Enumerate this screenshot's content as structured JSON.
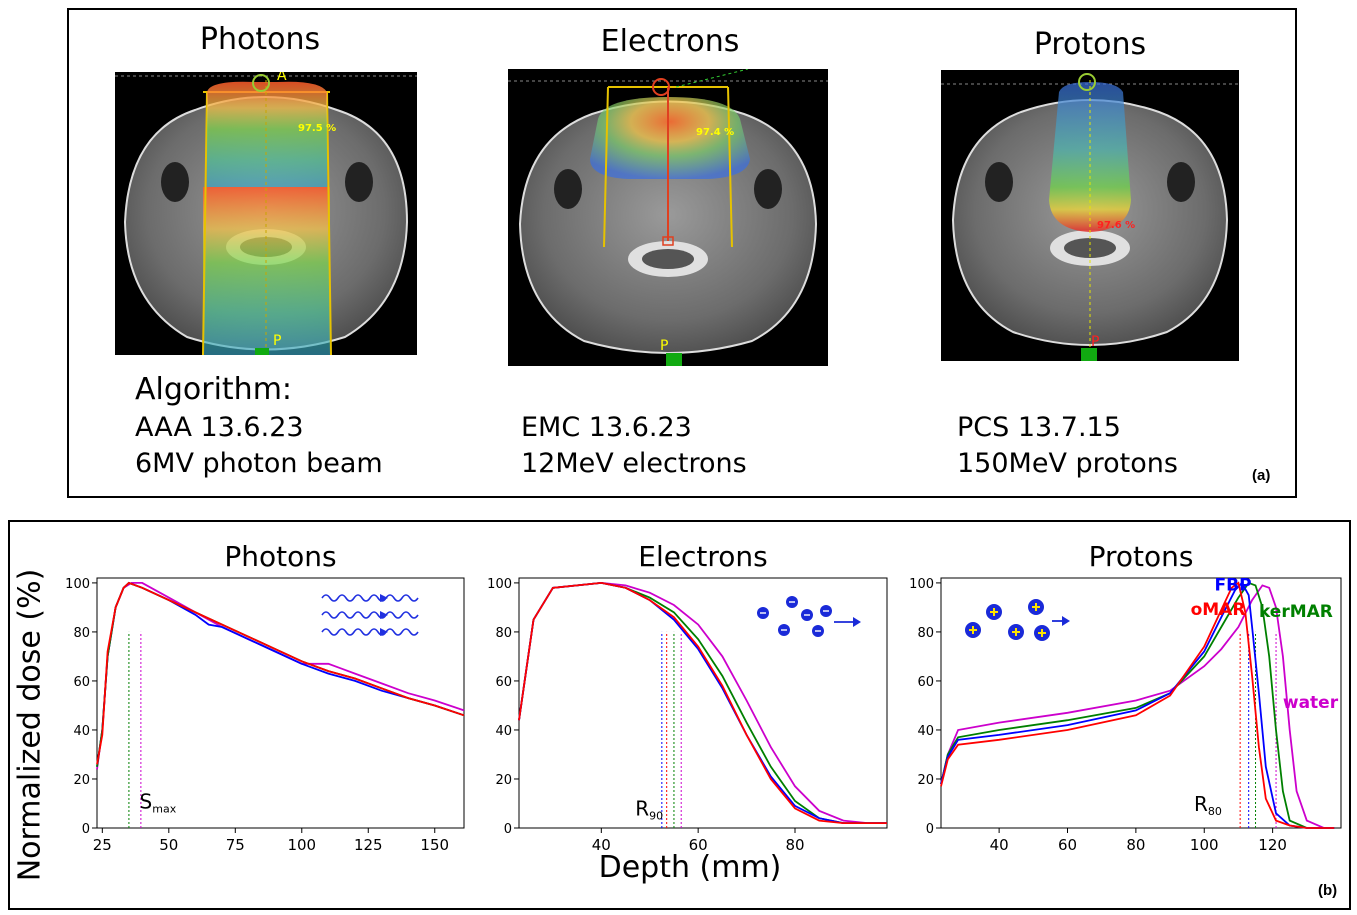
{
  "panel_a": {
    "label": "(a)",
    "columns": [
      {
        "title": "Photons",
        "algorithm_heading": "Algorithm:",
        "algorithm": "AAA 13.6.23",
        "beam": "6MV photon beam",
        "marker_top": "A",
        "marker_bottom": "P",
        "dose_max_label": "97.5 %"
      },
      {
        "title": "Electrons",
        "algorithm_heading": "",
        "algorithm": "EMC 13.6.23",
        "beam": "12MeV electrons",
        "marker_top": "",
        "marker_bottom": "P",
        "dose_max_label": "97.4 %"
      },
      {
        "title": "Protons",
        "algorithm_heading": "",
        "algorithm": "PCS 13.7.15",
        "beam": "150MeV protons",
        "marker_top": "",
        "marker_bottom": "P",
        "dose_max_label": "97.6 %"
      }
    ]
  },
  "panel_b": {
    "label": "(b)",
    "ylabel": "Normalized dose (%)",
    "xlabel": "Depth (mm)"
  },
  "colors": {
    "FBP": "#0000ff",
    "oMAR": "#ff0000",
    "kerMAR": "#008000",
    "water": "#cc00cc"
  },
  "chart_data": [
    {
      "type": "line",
      "title": "Photons",
      "xlim": [
        23,
        161
      ],
      "ylim": [
        0,
        102
      ],
      "xticks": [
        25,
        50,
        75,
        100,
        125,
        150
      ],
      "yticks": [
        0,
        20,
        40,
        60,
        80,
        100
      ],
      "annotation": {
        "text": "S",
        "sub": "max",
        "x": 39,
        "y": 8
      },
      "ref_lines": [
        {
          "x": 35,
          "color": "#008000"
        },
        {
          "x": 39.5,
          "color": "#cc00cc"
        }
      ],
      "series": [
        {
          "key": "water",
          "x": [
            23,
            25,
            27,
            30,
            33,
            36,
            38,
            40,
            50,
            60,
            70,
            80,
            90,
            100,
            110,
            115,
            120,
            130,
            140,
            150,
            161
          ],
          "y": [
            24,
            40,
            70,
            90,
            98,
            100,
            100,
            100,
            94,
            88,
            82,
            77,
            72,
            67,
            67,
            65,
            63,
            59,
            55,
            52,
            48
          ]
        },
        {
          "key": "FBP",
          "x": [
            23,
            25,
            27,
            30,
            33,
            35,
            40,
            50,
            60,
            65,
            70,
            80,
            90,
            100,
            110,
            120,
            130,
            140,
            150,
            161
          ],
          "y": [
            25,
            40,
            70,
            90,
            98,
            100,
            98,
            93,
            87,
            83,
            82,
            77,
            72,
            67,
            63,
            60,
            56,
            53,
            50,
            46
          ]
        },
        {
          "key": "kerMAR",
          "x": [
            23,
            25,
            27,
            30,
            33,
            35,
            40,
            50,
            60,
            70,
            80,
            90,
            100,
            110,
            120,
            130,
            140,
            150,
            161
          ],
          "y": [
            25,
            40,
            70,
            90,
            98,
            100,
            98,
            93,
            88,
            83,
            78,
            73,
            68,
            64,
            61,
            57,
            53,
            50,
            46
          ]
        },
        {
          "key": "oMAR",
          "x": [
            23,
            25,
            27,
            30,
            33,
            35,
            40,
            50,
            60,
            70,
            80,
            90,
            100,
            110,
            120,
            130,
            140,
            150,
            161
          ],
          "y": [
            26,
            38,
            72,
            90,
            98,
            100,
            98,
            93,
            88,
            83,
            78,
            73,
            68,
            64,
            61,
            57,
            53,
            50,
            46
          ]
        }
      ]
    },
    {
      "type": "line",
      "title": "Electrons",
      "xlim": [
        23,
        99
      ],
      "ylim": [
        0,
        102
      ],
      "xticks": [
        40,
        60,
        80
      ],
      "yticks": [
        0,
        20,
        40,
        60,
        80,
        100
      ],
      "annotation": {
        "text": "R",
        "sub": "90",
        "x": 47,
        "y": 5
      },
      "ref_lines": [
        {
          "x": 52.5,
          "color": "#0000ff"
        },
        {
          "x": 53.5,
          "color": "#ff0000"
        },
        {
          "x": 55,
          "color": "#008000"
        },
        {
          "x": 56.5,
          "color": "#cc00cc"
        }
      ],
      "series": [
        {
          "key": "water",
          "x": [
            23,
            26,
            30,
            35,
            40,
            45,
            50,
            55,
            60,
            65,
            70,
            75,
            80,
            85,
            90,
            95,
            99
          ],
          "y": [
            44,
            85,
            98,
            99,
            100,
            99,
            96,
            91,
            83,
            70,
            52,
            33,
            17,
            7,
            3,
            2,
            2
          ]
        },
        {
          "key": "kerMAR",
          "x": [
            23,
            26,
            30,
            35,
            40,
            45,
            50,
            55,
            60,
            65,
            70,
            75,
            80,
            85,
            90,
            95,
            99
          ],
          "y": [
            44,
            85,
            98,
            99,
            100,
            98,
            94,
            88,
            77,
            62,
            43,
            25,
            11,
            4,
            2,
            2,
            2
          ]
        },
        {
          "key": "FBP",
          "x": [
            23,
            26,
            30,
            35,
            40,
            45,
            50,
            55,
            60,
            65,
            70,
            75,
            80,
            85,
            90,
            95,
            99
          ],
          "y": [
            44,
            85,
            98,
            99,
            100,
            98,
            93,
            85,
            73,
            57,
            38,
            21,
            9,
            4,
            2,
            2,
            2
          ]
        },
        {
          "key": "oMAR",
          "x": [
            23,
            26,
            30,
            35,
            40,
            45,
            50,
            55,
            60,
            65,
            70,
            75,
            80,
            85,
            90,
            95,
            99
          ],
          "y": [
            44,
            85,
            98,
            99,
            100,
            98,
            93,
            86,
            74,
            58,
            38,
            20,
            8,
            3,
            2,
            2,
            2
          ]
        }
      ]
    },
    {
      "type": "line",
      "title": "Protons",
      "xlim": [
        23,
        140
      ],
      "ylim": [
        0,
        102
      ],
      "xticks": [
        40,
        60,
        80,
        100,
        120
      ],
      "yticks": [
        0,
        20,
        40,
        60,
        80,
        100
      ],
      "annotation": {
        "text": "R",
        "sub": "80",
        "x": 97,
        "y": 7
      },
      "ref_lines": [
        {
          "x": 110.5,
          "color": "#ff0000"
        },
        {
          "x": 113,
          "color": "#0000ff"
        },
        {
          "x": 115,
          "color": "#008000"
        },
        {
          "x": 121,
          "color": "#cc00cc"
        }
      ],
      "labels": [
        {
          "key": "FBP",
          "text": "FBP",
          "x": 103,
          "y": 97
        },
        {
          "key": "oMAR",
          "text": "oMAR",
          "x": 96,
          "y": 87
        },
        {
          "key": "kerMAR",
          "text": "kerMAR",
          "x": 116,
          "y": 86
        },
        {
          "key": "water",
          "text": "water",
          "x": 123,
          "y": 49
        }
      ],
      "series": [
        {
          "key": "water",
          "x": [
            23,
            25,
            28,
            40,
            60,
            80,
            90,
            100,
            105,
            110,
            114,
            117,
            119,
            121,
            123,
            125,
            127,
            130,
            135,
            138
          ],
          "y": [
            18,
            30,
            40,
            43,
            47,
            52,
            56,
            66,
            73,
            82,
            93,
            99,
            98,
            90,
            70,
            40,
            15,
            3,
            0,
            0
          ]
        },
        {
          "key": "kerMAR",
          "x": [
            23,
            25,
            28,
            40,
            60,
            80,
            90,
            100,
            105,
            110,
            113,
            115,
            117,
            119,
            121,
            123,
            125,
            130,
            135,
            138
          ],
          "y": [
            18,
            30,
            37,
            40,
            44,
            49,
            55,
            70,
            82,
            94,
            100,
            99,
            90,
            70,
            40,
            15,
            3,
            0,
            0,
            0
          ]
        },
        {
          "key": "FBP",
          "x": [
            23,
            25,
            28,
            40,
            60,
            80,
            90,
            100,
            105,
            109,
            111,
            113,
            114,
            116,
            118,
            121,
            125,
            130,
            135,
            138
          ],
          "y": [
            18,
            29,
            36,
            38,
            42,
            48,
            55,
            72,
            86,
            97,
            100,
            95,
            82,
            55,
            25,
            6,
            1,
            0,
            0,
            0
          ]
        },
        {
          "key": "oMAR",
          "x": [
            23,
            25,
            28,
            40,
            60,
            80,
            90,
            100,
            105,
            108,
            110,
            112,
            114,
            116,
            118,
            121,
            125,
            130,
            135,
            138
          ],
          "y": [
            17,
            28,
            34,
            36,
            40,
            46,
            54,
            74,
            89,
            98,
            100,
            88,
            62,
            33,
            12,
            3,
            1,
            0,
            0,
            0
          ]
        }
      ]
    }
  ]
}
